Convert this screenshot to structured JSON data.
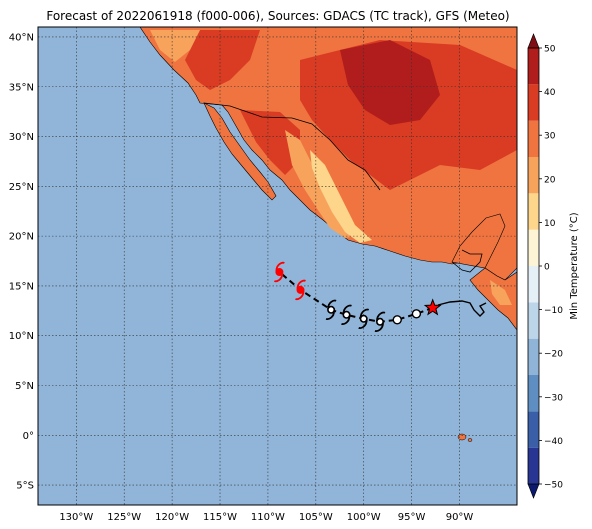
{
  "title": "Forecast of 2022061918 (f000-006), Sources: GDACS (TC track), GFS (Meteo)",
  "map": {
    "lon_range": [
      -134,
      -84
    ],
    "lat_range": [
      -7,
      41
    ],
    "lon_ticks": [
      {
        "value": -130,
        "label": "130°W"
      },
      {
        "value": -125,
        "label": "125°W"
      },
      {
        "value": -120,
        "label": "120°W"
      },
      {
        "value": -115,
        "label": "115°W"
      },
      {
        "value": -110,
        "label": "110°W"
      },
      {
        "value": -105,
        "label": "105°W"
      },
      {
        "value": -100,
        "label": "100°W"
      },
      {
        "value": -95,
        "label": "95°W"
      },
      {
        "value": -90,
        "label": "90°W"
      }
    ],
    "lat_ticks": [
      {
        "value": 40,
        "label": "40°N"
      },
      {
        "value": 35,
        "label": "35°N"
      },
      {
        "value": 30,
        "label": "30°N"
      },
      {
        "value": 25,
        "label": "25°N"
      },
      {
        "value": 20,
        "label": "20°N"
      },
      {
        "value": 15,
        "label": "15°N"
      },
      {
        "value": 10,
        "label": "10°N"
      },
      {
        "value": 5,
        "label": "5°N"
      },
      {
        "value": 0,
        "label": "0°"
      },
      {
        "value": -5,
        "label": "5°S"
      }
    ],
    "ocean_color": "#91b5d9"
  },
  "track": {
    "observed": [
      {
        "lon": -92.8,
        "lat": 12.8
      },
      {
        "lon": -94.5,
        "lat": 12.2
      },
      {
        "lon": -96.5,
        "lat": 11.6
      }
    ],
    "forecast": [
      {
        "lon": -98.3,
        "lat": 11.4,
        "color": "#000000"
      },
      {
        "lon": -100.0,
        "lat": 11.7,
        "color": "#000000"
      },
      {
        "lon": -101.8,
        "lat": 12.1,
        "color": "#000000"
      },
      {
        "lon": -103.4,
        "lat": 12.6,
        "color": "#000000"
      },
      {
        "lon": -106.6,
        "lat": 14.6,
        "color": "#ff0000"
      },
      {
        "lon": -108.8,
        "lat": 16.4,
        "color": "#ff0000"
      }
    ],
    "current_position": {
      "lon": -92.8,
      "lat": 12.8,
      "color": "#ff0000"
    }
  },
  "colorbar": {
    "label": "Min Temperature (°C)",
    "min": -50,
    "max": 50,
    "ticks": [
      "50",
      "40",
      "30",
      "20",
      "10",
      "0",
      "−10",
      "−20",
      "−30",
      "−40",
      "−50"
    ],
    "colors": [
      "#0b1a6e",
      "#283593",
      "#3a5fa8",
      "#5f8fc2",
      "#8fb4d7",
      "#bcd5e8",
      "#e5f0f6",
      "#fcf4d4",
      "#fdd58b",
      "#f7a35c",
      "#ef7440",
      "#d93b23",
      "#b01d1c",
      "#7f0f14"
    ]
  }
}
